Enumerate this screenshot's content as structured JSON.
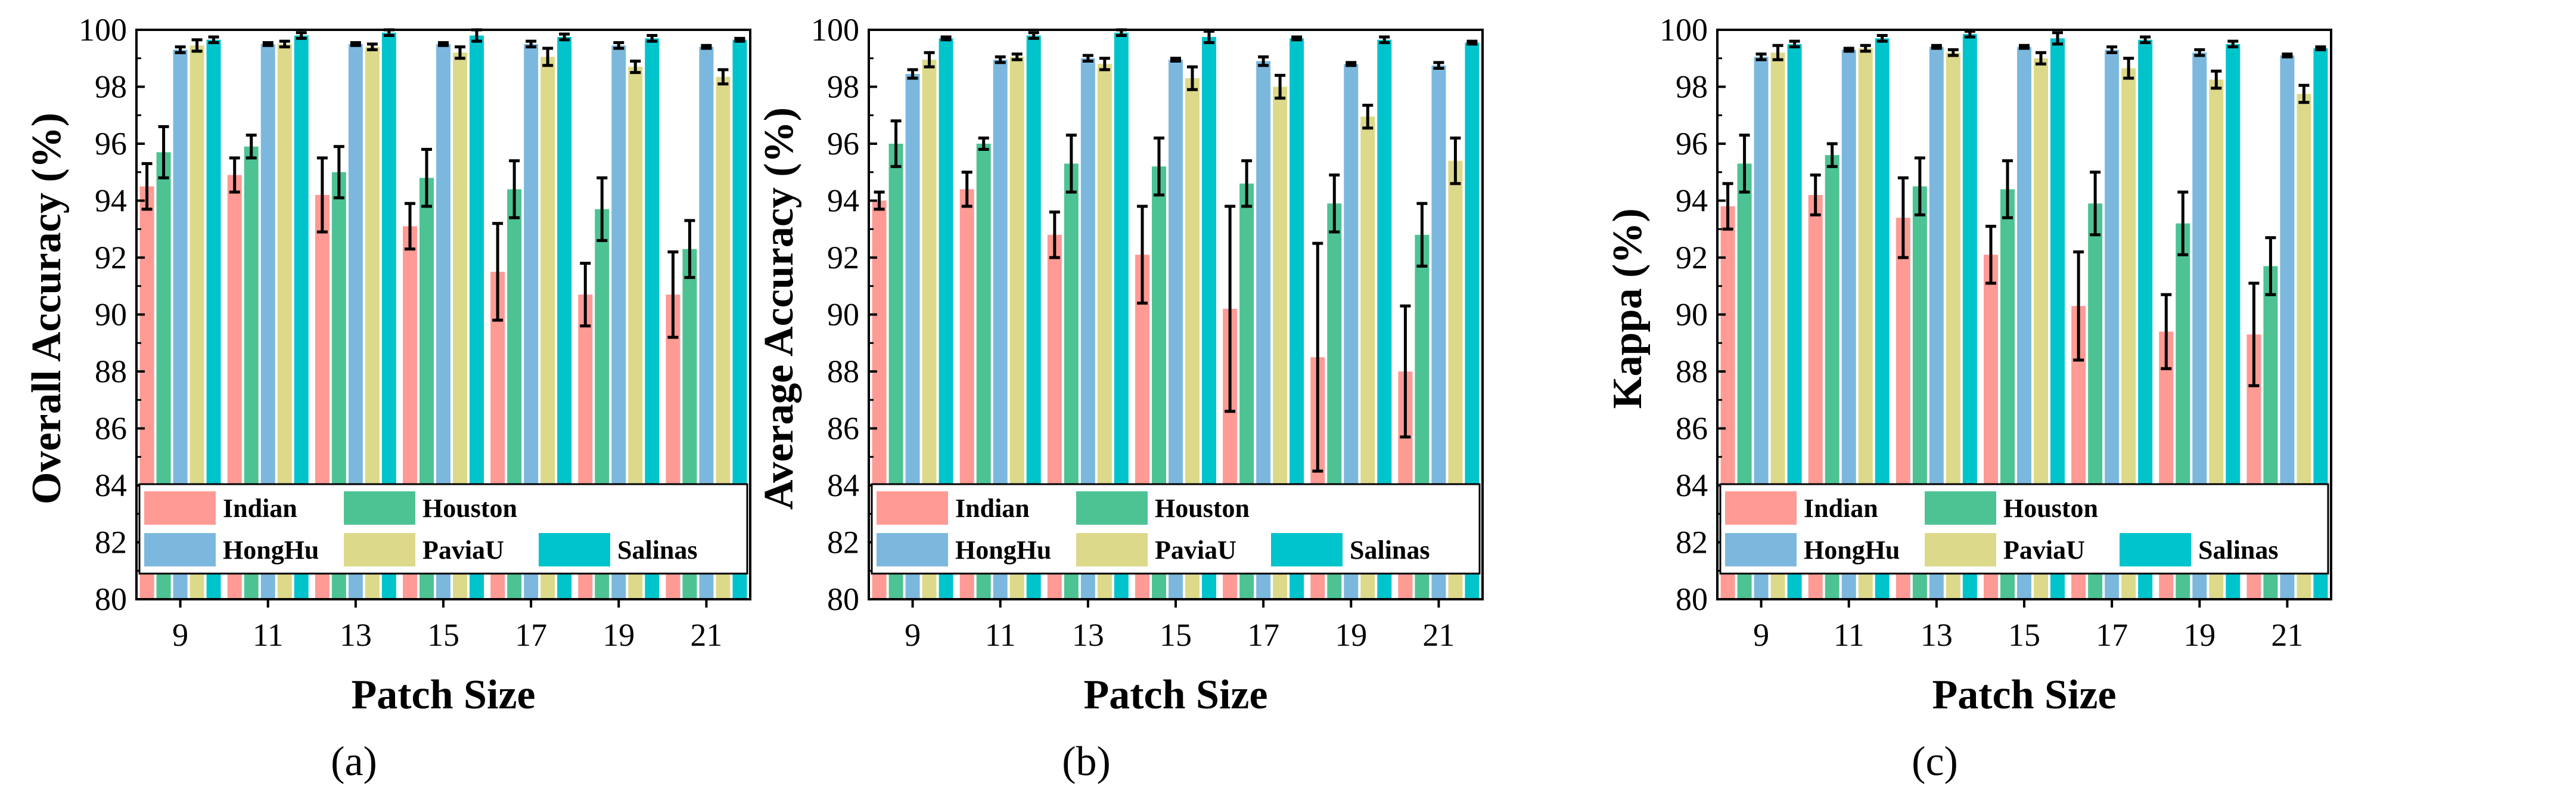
{
  "figure": {
    "series_colors": {
      "Indian": "#FF9A94",
      "Houston": "#4DC394",
      "HongHu": "#7CB8DE",
      "PaviaU": "#DDD98A",
      "Salinas": "#00C4CC"
    }
  },
  "chart_data": [
    {
      "type": "bar",
      "panel_label": "(a)",
      "caption": "(a)",
      "xlabel": "Patch Size",
      "ylabel": "Overall Accuracy (%)",
      "categories": [
        "9",
        "11",
        "13",
        "15",
        "17",
        "19",
        "21"
      ],
      "ylim": [
        80,
        100
      ],
      "yticks": [
        "80",
        "82",
        "84",
        "86",
        "88",
        "90",
        "92",
        "94",
        "96",
        "98",
        "100"
      ],
      "legend": [
        "Indian",
        "Houston",
        "HongHu",
        "PaviaU",
        "Salinas"
      ],
      "legend_position": "bottom-right",
      "series": [
        {
          "name": "Indian",
          "values": [
            94.5,
            94.9,
            94.2,
            93.1,
            91.5,
            90.7,
            90.7
          ],
          "errors": [
            0.8,
            0.6,
            1.3,
            0.8,
            1.7,
            1.1,
            1.5
          ]
        },
        {
          "name": "Houston",
          "values": [
            95.7,
            95.9,
            95.0,
            94.8,
            94.4,
            93.7,
            92.3
          ],
          "errors": [
            0.9,
            0.4,
            0.9,
            1.0,
            1.0,
            1.1,
            1.0
          ]
        },
        {
          "name": "HongHu",
          "values": [
            99.3,
            99.5,
            99.5,
            99.5,
            99.5,
            99.45,
            99.4
          ],
          "errors": [
            0.1,
            0.05,
            0.05,
            0.05,
            0.1,
            0.1,
            0.05
          ]
        },
        {
          "name": "PaviaU",
          "values": [
            99.45,
            99.5,
            99.4,
            99.2,
            99.05,
            98.7,
            98.35
          ],
          "errors": [
            0.2,
            0.1,
            0.1,
            0.2,
            0.3,
            0.2,
            0.25
          ]
        },
        {
          "name": "Salinas",
          "values": [
            99.65,
            99.8,
            99.9,
            99.8,
            99.75,
            99.7,
            99.65
          ],
          "errors": [
            0.1,
            0.1,
            0.1,
            0.2,
            0.1,
            0.1,
            0.05
          ]
        }
      ]
    },
    {
      "type": "bar",
      "panel_label": "(b)",
      "caption": "(b)",
      "xlabel": "Patch Size",
      "ylabel": "Average Accuracy (%)",
      "categories": [
        "9",
        "11",
        "13",
        "15",
        "17",
        "19",
        "21"
      ],
      "ylim": [
        80,
        100
      ],
      "yticks": [
        "80",
        "82",
        "84",
        "86",
        "88",
        "90",
        "92",
        "94",
        "96",
        "98",
        "100"
      ],
      "legend": [
        "Indian",
        "Houston",
        "HongHu",
        "PaviaU",
        "Salinas"
      ],
      "legend_position": "bottom-right",
      "series": [
        {
          "name": "Indian",
          "values": [
            94.0,
            94.4,
            92.8,
            92.1,
            90.2,
            88.5,
            88.0
          ],
          "errors": [
            0.3,
            0.6,
            0.8,
            1.7,
            3.6,
            4.0,
            2.3
          ]
        },
        {
          "name": "Houston",
          "values": [
            96.0,
            96.0,
            95.3,
            95.2,
            94.6,
            93.9,
            92.8
          ],
          "errors": [
            0.8,
            0.2,
            1.0,
            1.0,
            0.8,
            1.0,
            1.1
          ]
        },
        {
          "name": "HongHu",
          "values": [
            98.45,
            98.95,
            99.0,
            98.95,
            98.9,
            98.8,
            98.75
          ],
          "errors": [
            0.15,
            0.1,
            0.1,
            0.05,
            0.15,
            0.05,
            0.1
          ]
        },
        {
          "name": "PaviaU",
          "values": [
            98.95,
            99.05,
            98.8,
            98.3,
            98.0,
            96.95,
            95.4
          ],
          "errors": [
            0.25,
            0.1,
            0.2,
            0.4,
            0.4,
            0.4,
            0.8
          ]
        },
        {
          "name": "Salinas",
          "values": [
            99.7,
            99.8,
            99.9,
            99.75,
            99.7,
            99.65,
            99.55
          ],
          "errors": [
            0.05,
            0.1,
            0.1,
            0.2,
            0.05,
            0.1,
            0.05
          ]
        }
      ]
    },
    {
      "type": "bar",
      "panel_label": "(c)",
      "caption": "(c)",
      "xlabel": "Patch Size",
      "ylabel": "Kappa (%)",
      "categories": [
        "9",
        "11",
        "13",
        "15",
        "17",
        "19",
        "21"
      ],
      "ylim": [
        80,
        100
      ],
      "yticks": [
        "80",
        "82",
        "84",
        "86",
        "88",
        "90",
        "92",
        "94",
        "96",
        "98",
        "100"
      ],
      "legend": [
        "Indian",
        "Houston",
        "HongHu",
        "PaviaU",
        "Salinas"
      ],
      "legend_position": "bottom-right",
      "series": [
        {
          "name": "Indian",
          "values": [
            93.8,
            94.2,
            93.4,
            92.1,
            90.3,
            89.4,
            89.3
          ],
          "errors": [
            0.8,
            0.7,
            1.4,
            1.0,
            1.9,
            1.3,
            1.8
          ]
        },
        {
          "name": "Houston",
          "values": [
            95.3,
            95.6,
            94.5,
            94.4,
            93.9,
            93.2,
            91.7
          ],
          "errors": [
            1.0,
            0.4,
            1.0,
            1.0,
            1.1,
            1.1,
            1.0
          ]
        },
        {
          "name": "HongHu",
          "values": [
            99.05,
            99.3,
            99.4,
            99.4,
            99.3,
            99.2,
            99.1
          ],
          "errors": [
            0.1,
            0.05,
            0.05,
            0.05,
            0.1,
            0.1,
            0.05
          ]
        },
        {
          "name": "PaviaU",
          "values": [
            99.2,
            99.35,
            99.2,
            99.0,
            98.65,
            98.25,
            97.75
          ],
          "errors": [
            0.25,
            0.1,
            0.1,
            0.2,
            0.35,
            0.3,
            0.3
          ]
        },
        {
          "name": "Salinas",
          "values": [
            99.5,
            99.7,
            99.85,
            99.7,
            99.65,
            99.5,
            99.35
          ],
          "errors": [
            0.1,
            0.1,
            0.1,
            0.2,
            0.1,
            0.1,
            0.05
          ]
        }
      ]
    }
  ]
}
